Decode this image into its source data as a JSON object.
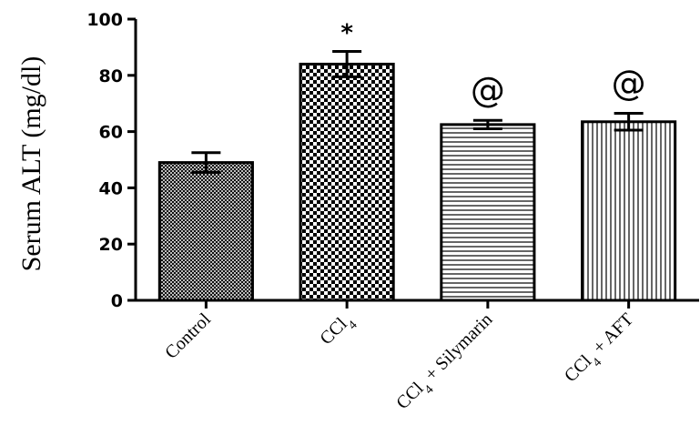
{
  "chart_data": {
    "type": "bar",
    "ylabel": "Serum ALT (mg/dl)",
    "ylim": [
      0,
      100
    ],
    "yticks": [
      "0",
      "20",
      "40",
      "60",
      "80",
      "100"
    ],
    "categories": [
      "Control",
      "CCl4",
      "CCl4 + Silymarin",
      "CCl4 + AFT"
    ],
    "values": [
      49,
      84,
      62.5,
      63.5
    ],
    "errors": [
      3.5,
      4.5,
      1.5,
      3
    ],
    "annotations": [
      "",
      "*",
      "@",
      "@"
    ],
    "patterns": [
      "dense-crosshatch",
      "checkerboard",
      "horizontal-lines",
      "vertical-lines"
    ],
    "grid": false
  }
}
